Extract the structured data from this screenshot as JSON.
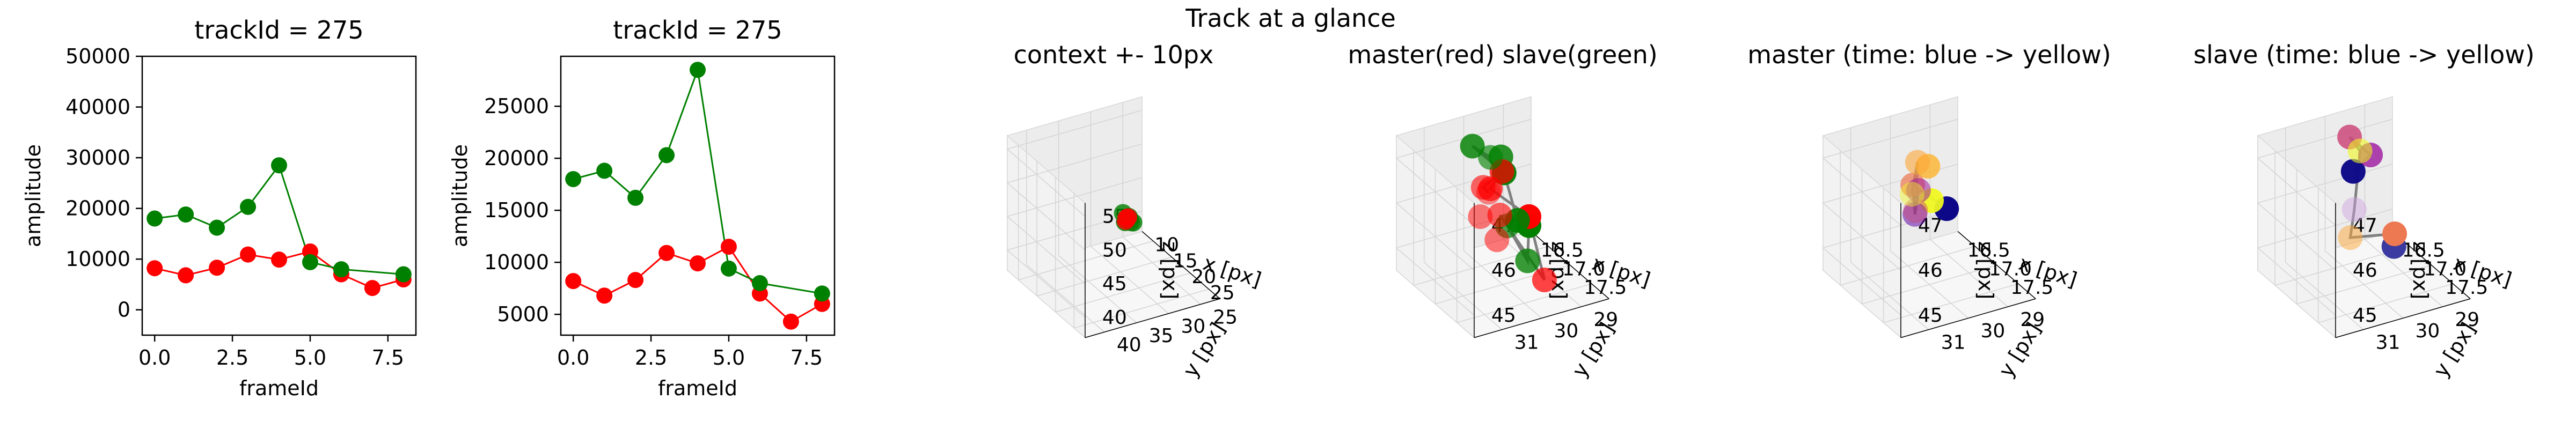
{
  "figure": {
    "suptitle": "Track at a glance"
  },
  "colors": {
    "master": "#ff0000",
    "slave": "#008000",
    "line": "#808080",
    "pane_left": "#ececec",
    "pane_right": "#f2f2f2",
    "pane_bottom": "#f7f7f7"
  },
  "chart_data": [
    {
      "type": "line",
      "title": "trackId = 275",
      "xlabel": "frameId",
      "ylabel": "amplitude",
      "xlim": [
        -0.4,
        8.4
      ],
      "ylim": [
        -5000,
        50000
      ],
      "xticks": [
        "0.0",
        "2.5",
        "5.0",
        "7.5"
      ],
      "xtick_values": [
        0,
        2.5,
        5,
        7.5
      ],
      "yticks": [
        "0",
        "10000",
        "20000",
        "30000",
        "40000",
        "50000"
      ],
      "ytick_values": [
        0,
        10000,
        20000,
        30000,
        40000,
        50000
      ],
      "grid": false,
      "x": [
        0,
        1,
        2,
        3,
        4,
        5,
        6,
        7,
        8
      ],
      "series": [
        {
          "color": "#ff0000",
          "values": [
            8200,
            6800,
            8300,
            10900,
            9900,
            11500,
            7000,
            4300,
            6000
          ]
        },
        {
          "color": "#008000",
          "values": [
            18000,
            18800,
            16200,
            20300,
            28500,
            9400,
            8000,
            null,
            7000
          ]
        }
      ]
    },
    {
      "type": "line",
      "title": "trackId = 275",
      "xlabel": "frameId",
      "ylabel": "amplitude",
      "xlim": [
        -0.4,
        8.4
      ],
      "ylim": [
        3000,
        29800
      ],
      "xticks": [
        "0.0",
        "2.5",
        "5.0",
        "7.5"
      ],
      "xtick_values": [
        0,
        2.5,
        5,
        7.5
      ],
      "yticks": [
        "5000",
        "10000",
        "15000",
        "20000",
        "25000"
      ],
      "ytick_values": [
        5000,
        10000,
        15000,
        20000,
        25000
      ],
      "grid": false,
      "x": [
        0,
        1,
        2,
        3,
        4,
        5,
        6,
        7,
        8
      ],
      "series": [
        {
          "color": "#ff0000",
          "values": [
            8200,
            6800,
            8300,
            10900,
            9900,
            11500,
            7000,
            4300,
            6000
          ]
        },
        {
          "color": "#008000",
          "values": [
            18000,
            18800,
            16200,
            20300,
            28500,
            9400,
            8000,
            null,
            7000
          ]
        }
      ]
    },
    {
      "type": "scatter3d",
      "title": "context +- 10px",
      "xlabel": "x [px]",
      "ylabel": "y [px]",
      "zlabel": "z [px]",
      "xlim": [
        7,
        28
      ],
      "ylim": [
        22,
        43
      ],
      "zlim": [
        37,
        57
      ],
      "xticks": [
        "10",
        "15",
        "20",
        "25"
      ],
      "xtick_values": [
        10,
        15,
        20,
        25
      ],
      "yticks": [
        "25",
        "30",
        "35",
        "40"
      ],
      "ytick_values": [
        25,
        30,
        35,
        40
      ],
      "zticks": [
        "40",
        "45",
        "50",
        "55"
      ],
      "ztick_values": [
        40,
        45,
        50,
        55
      ],
      "points": [
        {
          "x": 17.5,
          "y": 30.5,
          "z": 46.3,
          "color": "#ff0000"
        },
        {
          "x": 17.1,
          "y": 30.0,
          "z": 46.1,
          "color": "#ff0000"
        },
        {
          "x": 16.8,
          "y": 30.2,
          "z": 45.5,
          "color": "#ff0000"
        },
        {
          "x": 16.6,
          "y": 29.6,
          "z": 45.8,
          "color": "#008000"
        },
        {
          "x": 16.3,
          "y": 29.3,
          "z": 45.2,
          "color": "#008000"
        },
        {
          "x": 16.1,
          "y": 29.9,
          "z": 44.9,
          "color": "#008000"
        },
        {
          "x": 16.9,
          "y": 29.1,
          "z": 45.0,
          "color": "#008000"
        },
        {
          "x": 16.4,
          "y": 30.4,
          "z": 46.5,
          "color": "#008000"
        },
        {
          "x": 16.0,
          "y": 29.0,
          "z": 44.6,
          "color": "#556b2f"
        }
      ],
      "paths": [
        [
          1,
          3,
          5,
          6
        ]
      ]
    },
    {
      "type": "scatter3d",
      "title": "master(red) slave(green)",
      "xlabel": "x [px]",
      "ylabel": "y [px]",
      "zlabel": "z [px]",
      "xlim": [
        16.1,
        17.9
      ],
      "ylim": [
        28.3,
        31.7
      ],
      "zlim": [
        44.5,
        47.5
      ],
      "xticks": [
        "16.5",
        "17.0",
        "17.5"
      ],
      "xtick_values": [
        16.5,
        17.0,
        17.5
      ],
      "yticks": [
        "29",
        "30",
        "31"
      ],
      "ytick_values": [
        29,
        30,
        31
      ],
      "zticks": [
        "45",
        "46",
        "47"
      ],
      "ztick_values": [
        45,
        46,
        47
      ],
      "points": [
        {
          "x": 17.5,
          "y": 30.9,
          "z": 47.2,
          "color": "#ff0000"
        },
        {
          "x": 17.4,
          "y": 31.0,
          "z": 46.6,
          "color": "#ff0000"
        },
        {
          "x": 17.1,
          "y": 30.6,
          "z": 46.9,
          "color": "#ff0000"
        },
        {
          "x": 17.3,
          "y": 30.4,
          "z": 46.4,
          "color": "#ff0000"
        },
        {
          "x": 16.9,
          "y": 30.2,
          "z": 46.6,
          "color": "#ff0000"
        },
        {
          "x": 17.6,
          "y": 30.8,
          "z": 46.2,
          "color": "#ff0000"
        },
        {
          "x": 16.8,
          "y": 29.8,
          "z": 46.8,
          "color": "#ff0000"
        },
        {
          "x": 17.6,
          "y": 29.6,
          "z": 45.0,
          "color": "#ff0000"
        },
        {
          "x": 16.6,
          "y": 28.9,
          "z": 45.4,
          "color": "#ff0000"
        },
        {
          "x": 16.9,
          "y": 30.2,
          "z": 47.3,
          "color": "#008000"
        },
        {
          "x": 16.3,
          "y": 30.0,
          "z": 47.0,
          "color": "#008000"
        },
        {
          "x": 16.5,
          "y": 29.5,
          "z": 46.8,
          "color": "#008000"
        },
        {
          "x": 16.3,
          "y": 29.2,
          "z": 46.2,
          "color": "#008000"
        },
        {
          "x": 17.2,
          "y": 30.1,
          "z": 46.0,
          "color": "#008000"
        },
        {
          "x": 17.3,
          "y": 29.7,
          "z": 45.2,
          "color": "#008000"
        },
        {
          "x": 16.7,
          "y": 29.3,
          "z": 45.5,
          "color": "#008000"
        },
        {
          "x": 16.6,
          "y": 28.9,
          "z": 45.2,
          "color": "#008000"
        }
      ],
      "paths": [
        [
          0,
          2,
          6,
          4,
          8,
          7,
          3
        ],
        [
          9,
          10,
          12,
          15,
          16,
          14,
          13
        ]
      ]
    },
    {
      "type": "scatter3d",
      "title": "master (time: blue -> yellow)",
      "xlabel": "x [px]",
      "ylabel": "y [px]",
      "zlabel": "z [px]",
      "xlim": [
        16.1,
        17.9
      ],
      "ylim": [
        28.3,
        31.7
      ],
      "zlim": [
        44.5,
        47.5
      ],
      "xticks": [
        "16.5",
        "17.0",
        "17.5"
      ],
      "xtick_values": [
        16.5,
        17.0,
        17.5
      ],
      "yticks": [
        "29",
        "30",
        "31"
      ],
      "ytick_values": [
        29,
        30,
        31
      ],
      "zticks": [
        "45",
        "46",
        "47"
      ],
      "ztick_values": [
        45,
        46,
        47
      ],
      "points": [
        {
          "x": 16.3,
          "y": 28.8,
          "z": 45.3,
          "color": "#0d0887"
        },
        {
          "x": 17.4,
          "y": 30.8,
          "z": 46.6,
          "color": "#5c01a6"
        },
        {
          "x": 17.3,
          "y": 30.6,
          "z": 47.0,
          "color": "#9c179e"
        },
        {
          "x": 17.6,
          "y": 31.0,
          "z": 46.9,
          "color": "#cc4778"
        },
        {
          "x": 16.8,
          "y": 30.2,
          "z": 46.6,
          "color": "#ed7953"
        },
        {
          "x": 16.6,
          "y": 29.6,
          "z": 46.7,
          "color": "#fdb42f"
        },
        {
          "x": 16.5,
          "y": 29.4,
          "z": 45.8,
          "color": "#f0f921"
        },
        {
          "x": 17.0,
          "y": 30.3,
          "z": 47.3,
          "color": "#fca636"
        },
        {
          "x": 17.7,
          "y": 31.2,
          "z": 47.4,
          "color": "#f0f921"
        }
      ],
      "paths": [
        [
          0,
          4,
          1,
          2,
          3,
          7,
          8
        ]
      ]
    },
    {
      "type": "scatter3d",
      "title": "slave (time: blue -> yellow)",
      "xlabel": "x [px]",
      "ylabel": "y [px]",
      "zlabel": "z [px]",
      "xlim": [
        16.1,
        17.9
      ],
      "ylim": [
        28.3,
        31.7
      ],
      "zlim": [
        44.5,
        47.5
      ],
      "xticks": [
        "16.5",
        "17.0",
        "17.5"
      ],
      "xtick_values": [
        16.5,
        17.0,
        17.5
      ],
      "yticks": [
        "29",
        "30",
        "31"
      ],
      "ytick_values": [
        29,
        30,
        31
      ],
      "zticks": [
        "45",
        "46",
        "47"
      ],
      "ztick_values": [
        45,
        46,
        47
      ],
      "points": [
        {
          "x": 16.2,
          "y": 29.4,
          "z": 46.2,
          "color": "#0d0887"
        },
        {
          "x": 16.6,
          "y": 29.4,
          "z": 46.9,
          "color": "#9c179e"
        },
        {
          "x": 16.3,
          "y": 29.6,
          "z": 47.1,
          "color": "#cc4778"
        },
        {
          "x": 16.7,
          "y": 28.9,
          "z": 45.1,
          "color": "#ed7953"
        },
        {
          "x": 17.6,
          "y": 31.0,
          "z": 46.3,
          "color": "#fca636"
        },
        {
          "x": 17.0,
          "y": 30.1,
          "z": 47.5,
          "color": "#f0f921"
        },
        {
          "x": 17.6,
          "y": 30.9,
          "z": 46.9,
          "color": "#cf9fdf"
        },
        {
          "x": 16.5,
          "y": 28.7,
          "z": 44.6,
          "color": "#3a3aa0"
        }
      ],
      "paths": [
        [
          0,
          1,
          2,
          5,
          6,
          4,
          3,
          7
        ]
      ]
    }
  ]
}
